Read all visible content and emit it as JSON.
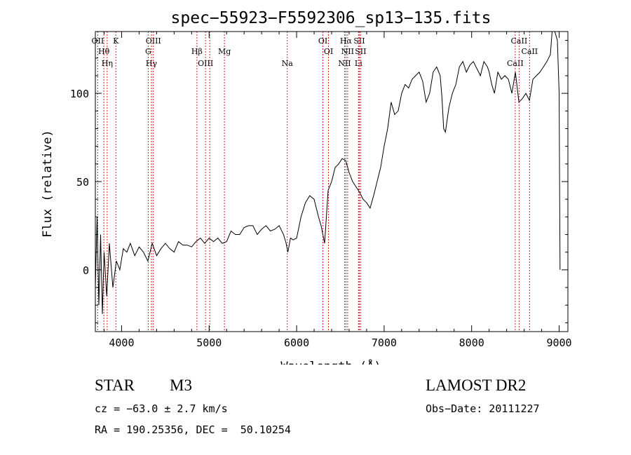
{
  "chart_data": {
    "type": "line",
    "title": "spec−55923−F5592306_sp13−135.fits",
    "xlabel": "Wavelength (Å)",
    "ylabel": "Flux (relative)",
    "xlim": [
      3700,
      9100
    ],
    "ylim": [
      -35,
      135
    ],
    "xticks": [
      4000,
      5000,
      6000,
      7000,
      8000,
      9000
    ],
    "xtick_labels": [
      "4000",
      "5000",
      "6000",
      "7000",
      "8000",
      "9000"
    ],
    "yticks": [
      0,
      50,
      100
    ],
    "ytick_labels": [
      "0",
      "50",
      "100"
    ],
    "grid": false,
    "series": [
      {
        "x": [
          3700,
          3720,
          3740,
          3760,
          3780,
          3800,
          3830,
          3860,
          3900,
          3940,
          3980,
          4020,
          4060,
          4100,
          4150,
          4200,
          4250,
          4300,
          4350,
          4400,
          4450,
          4500,
          4550,
          4600,
          4650,
          4700,
          4750,
          4800,
          4850,
          4900,
          4950,
          5000,
          5050,
          5100,
          5150,
          5200,
          5250,
          5300,
          5350,
          5400,
          5450,
          5500,
          5550,
          5600,
          5650,
          5700,
          5750,
          5800,
          5850,
          5880,
          5900,
          5930,
          5960,
          6000,
          6050,
          6100,
          6150,
          6200,
          6250,
          6280,
          6300,
          6320,
          6340,
          6360,
          6400,
          6440,
          6480,
          6520,
          6560,
          6600,
          6640,
          6680,
          6720,
          6760,
          6800,
          6840,
          6880,
          6920,
          6960,
          7000,
          7040,
          7080,
          7120,
          7160,
          7200,
          7240,
          7280,
          7320,
          7360,
          7400,
          7440,
          7480,
          7520,
          7560,
          7600,
          7640,
          7660,
          7680,
          7700,
          7740,
          7780,
          7820,
          7860,
          7900,
          7940,
          7980,
          8020,
          8060,
          8100,
          8140,
          8180,
          8200,
          8230,
          8260,
          8300,
          8340,
          8380,
          8420,
          8460,
          8500,
          8540,
          8580,
          8620,
          8660,
          8700,
          8740,
          8780,
          8820,
          8860,
          8900,
          8920,
          8950,
          8980,
          9000,
          9010
        ],
        "y": [
          -10,
          30,
          -20,
          20,
          -25,
          10,
          -15,
          15,
          -10,
          5,
          0,
          12,
          10,
          15,
          8,
          13,
          10,
          5,
          15,
          8,
          12,
          15,
          12,
          10,
          16,
          14,
          14,
          13,
          16,
          18,
          15,
          18,
          16,
          18,
          15,
          16,
          22,
          20,
          20,
          24,
          25,
          25,
          20,
          23,
          25,
          22,
          23,
          25,
          20,
          15,
          10,
          18,
          17,
          18,
          30,
          38,
          42,
          40,
          30,
          25,
          20,
          15,
          30,
          45,
          50,
          58,
          60,
          63,
          62,
          55,
          50,
          47,
          44,
          40,
          38,
          35,
          42,
          50,
          58,
          70,
          80,
          95,
          88,
          90,
          100,
          105,
          103,
          108,
          110,
          112,
          107,
          95,
          100,
          112,
          115,
          110,
          98,
          80,
          78,
          92,
          100,
          105,
          115,
          118,
          112,
          116,
          118,
          114,
          110,
          118,
          115,
          112,
          105,
          100,
          112,
          108,
          110,
          108,
          100,
          112,
          95,
          97,
          100,
          96,
          108,
          110,
          112,
          115,
          118,
          122,
          150,
          140,
          130,
          100,
          0
        ]
      }
    ],
    "lines": [
      {
        "x": 3727,
        "labels": [
          "OII"
        ]
      },
      {
        "x": 3797,
        "labels": [
          "Hθ"
        ]
      },
      {
        "x": 3835,
        "labels": [
          "Hη"
        ]
      },
      {
        "x": 3934,
        "labels": [
          "K"
        ]
      },
      {
        "x": 4304,
        "labels": [
          "G"
        ]
      },
      {
        "x": 4341,
        "labels": [
          "Hγ"
        ]
      },
      {
        "x": 4363,
        "labels": [
          "OIII"
        ]
      },
      {
        "x": 4861,
        "labels": [
          "Hβ"
        ]
      },
      {
        "x": 4959,
        "labels": [
          "OIII"
        ]
      },
      {
        "x": 5007,
        "labels": []
      },
      {
        "x": 5175,
        "labels": [
          "Mg"
        ]
      },
      {
        "x": 5893,
        "labels": [
          "Na"
        ]
      },
      {
        "x": 6300,
        "labels": [
          "OI"
        ]
      },
      {
        "x": 6364,
        "labels": [
          "OI"
        ]
      },
      {
        "x": 6548,
        "labels": [
          "NII"
        ]
      },
      {
        "x": 6563,
        "labels": [
          "Hα"
        ]
      },
      {
        "x": 6583,
        "labels": [
          "NII"
        ]
      },
      {
        "x": 6707,
        "labels": [
          "Li"
        ]
      },
      {
        "x": 6716,
        "labels": [
          "SII"
        ]
      },
      {
        "x": 6731,
        "labels": [
          "SII"
        ]
      },
      {
        "x": 8498,
        "labels": [
          "CaII"
        ]
      },
      {
        "x": 8542,
        "labels": [
          "CaII"
        ]
      },
      {
        "x": 8662,
        "labels": [
          "CaII"
        ]
      }
    ]
  },
  "info": {
    "object_class": "STAR",
    "subclass": "M3",
    "survey": "LAMOST DR2",
    "velocity": "cz = −63.0 ± 2.7 km/s",
    "obs_date": "Obs−Date: 20111227",
    "coords": "RA = 190.25356, DEC =  50.10254"
  }
}
